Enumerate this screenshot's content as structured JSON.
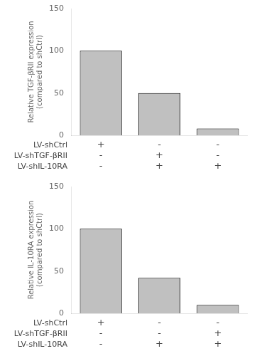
{
  "chart_data": [
    {
      "type": "bar",
      "categories": [
        [
          "+",
          "-",
          "-"
        ],
        [
          "-",
          "+",
          "+"
        ],
        [
          "-",
          "-",
          "+"
        ]
      ],
      "row_labels": [
        "LV-shCtrl",
        "LV-shTGF-βRII",
        "LV-shIL-10RA"
      ],
      "values": [
        100,
        50,
        8
      ],
      "color": "#c0c0c0",
      "y_label": "Relative TGF-βRII expression\n(compared to shCtrl)",
      "ylim": [
        0,
        150
      ],
      "yticks": [
        0,
        50,
        100,
        150
      ],
      "grid": false
    },
    {
      "type": "bar",
      "categories": [
        [
          "+",
          "-",
          "-"
        ],
        [
          "-",
          "-",
          "+"
        ],
        [
          "-",
          "+",
          "+"
        ]
      ],
      "row_labels": [
        "LV-shCtrl",
        "LV-shTGF-βRII",
        "LV-shIL-10RA"
      ],
      "values": [
        100,
        42,
        10
      ],
      "color": "#c0c0c0",
      "y_label": "Relative IL-10RA expression\n(compared to shCtrl)",
      "ylim": [
        0,
        150
      ],
      "yticks": [
        0,
        50,
        100,
        150
      ],
      "grid": false
    }
  ]
}
